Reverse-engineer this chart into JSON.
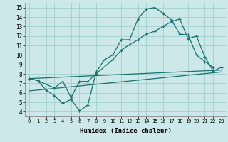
{
  "xlabel": "Humidex (Indice chaleur)",
  "xlim": [
    -0.5,
    23.5
  ],
  "ylim": [
    3.5,
    15.5
  ],
  "xticks": [
    0,
    1,
    2,
    3,
    4,
    5,
    6,
    7,
    8,
    9,
    10,
    11,
    12,
    13,
    14,
    15,
    16,
    17,
    18,
    19,
    20,
    21,
    22,
    23
  ],
  "yticks": [
    4,
    5,
    6,
    7,
    8,
    9,
    10,
    11,
    12,
    13,
    14,
    15
  ],
  "bg_color": "#cce8e8",
  "grid_color": "#a8d4d4",
  "line_color": "#1a7070",
  "line1_x": [
    0,
    1,
    2,
    3,
    4,
    5,
    6,
    7,
    8,
    9,
    10,
    11,
    12,
    13,
    14,
    15,
    16,
    17,
    18,
    19,
    20,
    21,
    22
  ],
  "line1_y": [
    7.5,
    7.3,
    6.3,
    5.7,
    4.9,
    5.3,
    4.1,
    4.7,
    8.2,
    9.5,
    10.0,
    11.6,
    11.6,
    13.8,
    14.85,
    15.0,
    14.4,
    13.7,
    12.2,
    12.1,
    10.0,
    9.3,
    8.7
  ],
  "line2_x": [
    0,
    1,
    3,
    4,
    5,
    6,
    7,
    8,
    10,
    11,
    12,
    13,
    14,
    15,
    16,
    17,
    18,
    19,
    20,
    21,
    22,
    23
  ],
  "line2_y": [
    7.5,
    7.3,
    6.5,
    7.2,
    5.5,
    7.2,
    7.2,
    8.0,
    9.5,
    10.5,
    11.1,
    11.6,
    12.2,
    12.5,
    13.0,
    13.5,
    13.8,
    11.7,
    12.0,
    9.8,
    8.3,
    8.7
  ],
  "line3_x": [
    0,
    23
  ],
  "line3_y": [
    7.5,
    8.4
  ],
  "line4_x": [
    0,
    23
  ],
  "line4_y": [
    6.2,
    8.2
  ]
}
